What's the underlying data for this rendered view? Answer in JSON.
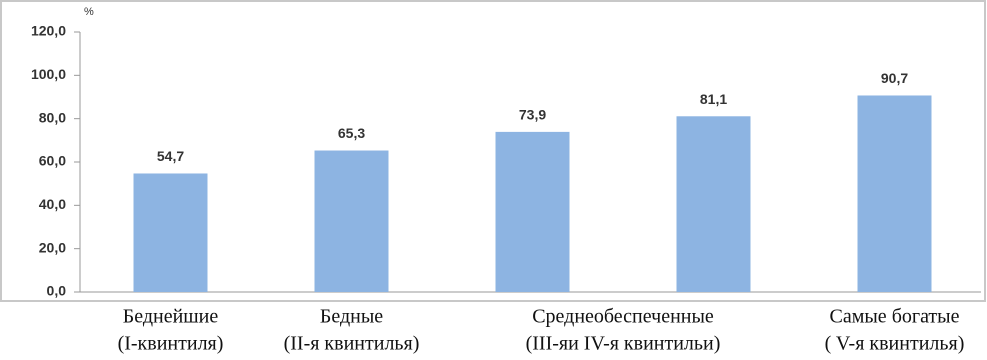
{
  "chart_data": {
    "type": "bar",
    "y_unit": "%",
    "categories": [
      [
        "Беднейшие",
        "(I-квинтиля)"
      ],
      [
        "Бедные",
        "(II-я квинтилья)"
      ],
      [
        "Среднеобеспеченные",
        "(III-яи IV-я квинтильи)"
      ],
      null,
      [
        "Самые богатые",
        "( V-я квинтилья)"
      ]
    ],
    "values": [
      54.7,
      65.3,
      73.9,
      81.1,
      90.7
    ],
    "value_labels": [
      "54,7",
      "65,3",
      "73,9",
      "81,1",
      "90,7"
    ],
    "color": "#8db4e2",
    "ylim": [
      0,
      120
    ],
    "yticks": [
      {
        "value": 0,
        "label": "0,0"
      },
      {
        "value": 20,
        "label": "20,0"
      },
      {
        "value": 40,
        "label": "40,0"
      },
      {
        "value": 60,
        "label": "60,0"
      },
      {
        "value": 80,
        "label": "80,0"
      },
      {
        "value": 100,
        "label": "100,0"
      },
      {
        "value": 120,
        "label": "120,0"
      }
    ]
  }
}
